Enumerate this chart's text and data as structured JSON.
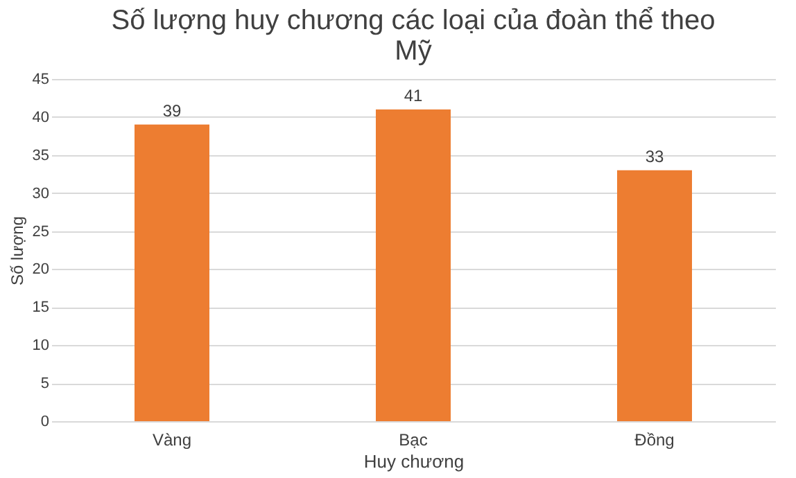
{
  "chart_data": {
    "type": "bar",
    "title": "Số lượng huy chương các loại của đoàn thể theo Mỹ",
    "xlabel": "Huy chương",
    "ylabel": "Số lượng",
    "categories": [
      "Vàng",
      "Bạc",
      "Đồng"
    ],
    "values": [
      39,
      41,
      33
    ],
    "color": "#ed7d31",
    "ylim": [
      0,
      45
    ],
    "yticks": [
      0,
      5,
      10,
      15,
      20,
      25,
      30,
      35,
      40,
      45
    ],
    "grid": "y",
    "data_labels": true
  }
}
